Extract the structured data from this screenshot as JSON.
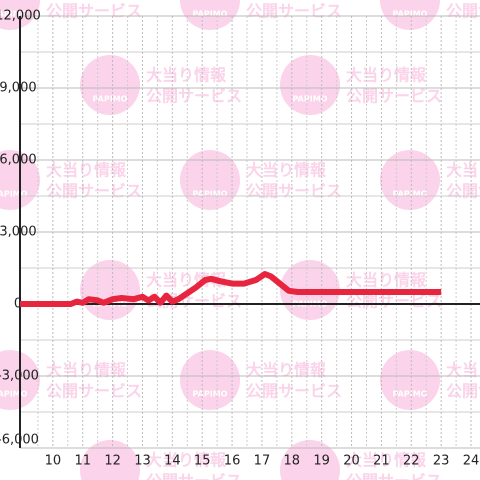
{
  "chart_data": {
    "type": "line",
    "xlim": [
      8.9,
      24.3
    ],
    "xticks": [
      10,
      11,
      12,
      13,
      14,
      15,
      16,
      17,
      18,
      19,
      20,
      21,
      22,
      23,
      24
    ],
    "xminorticks": [
      9.5,
      10.5,
      11.5,
      12.5,
      13.5,
      14.5,
      15.5,
      16.5,
      17.5,
      18.5,
      19.5,
      20.5,
      21.5,
      22.5,
      23.5
    ],
    "ylim": [
      -6000,
      12000
    ],
    "yticks": [
      {
        "value": -6000,
        "label": "-6,000"
      },
      {
        "value": -3000,
        "label": "-3,000"
      },
      0,
      {
        "value": 3000,
        "label": "3,000"
      },
      {
        "value": 6000,
        "label": "6,000"
      },
      {
        "value": 9000,
        "label": "9,000"
      },
      {
        "value": 12000,
        "label": "12,000"
      }
    ],
    "yminorticks": [
      -4500,
      -1500,
      1500,
      4500,
      7500,
      10500
    ],
    "grid": true,
    "series": [
      {
        "color": "#e8253f",
        "x": [
          8.9,
          10.6,
          10.8,
          11.0,
          11.2,
          11.5,
          11.7,
          12.0,
          12.3,
          12.7,
          13.0,
          13.2,
          13.4,
          13.6,
          13.8,
          14.0,
          14.2,
          14.5,
          14.8,
          15.1,
          15.3,
          15.6,
          16.0,
          16.4,
          16.8,
          17.1,
          17.3,
          17.6,
          17.9,
          18.2,
          23.0
        ],
        "values": [
          0,
          0,
          100,
          50,
          200,
          150,
          50,
          200,
          250,
          200,
          300,
          150,
          300,
          50,
          350,
          100,
          200,
          450,
          700,
          1000,
          1050,
          950,
          850,
          850,
          1000,
          1250,
          1150,
          850,
          550,
          500,
          500
        ]
      }
    ]
  },
  "watermark": {
    "line1": "大当り情報",
    "line2": "公開サービス",
    "brand": "PAPIMO"
  }
}
